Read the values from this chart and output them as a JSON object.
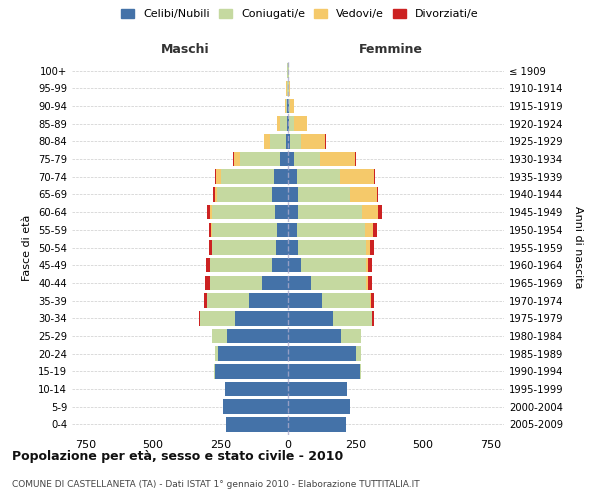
{
  "age_groups": [
    "0-4",
    "5-9",
    "10-14",
    "15-19",
    "20-24",
    "25-29",
    "30-34",
    "35-39",
    "40-44",
    "45-49",
    "50-54",
    "55-59",
    "60-64",
    "65-69",
    "70-74",
    "75-79",
    "80-84",
    "85-89",
    "90-94",
    "95-99",
    "100+"
  ],
  "birth_years": [
    "2005-2009",
    "2000-2004",
    "1995-1999",
    "1990-1994",
    "1985-1989",
    "1980-1984",
    "1975-1979",
    "1970-1974",
    "1965-1969",
    "1960-1964",
    "1955-1959",
    "1950-1954",
    "1945-1949",
    "1940-1944",
    "1935-1939",
    "1930-1934",
    "1925-1929",
    "1920-1924",
    "1915-1919",
    "1910-1914",
    "≤ 1909"
  ],
  "males": {
    "celibi": [
      230,
      240,
      235,
      270,
      260,
      225,
      195,
      145,
      95,
      58,
      46,
      42,
      48,
      58,
      52,
      28,
      8,
      5,
      2,
      1,
      0
    ],
    "coniugati": [
      0,
      0,
      0,
      5,
      10,
      55,
      130,
      155,
      195,
      230,
      235,
      240,
      235,
      205,
      195,
      150,
      58,
      24,
      5,
      3,
      2
    ],
    "vedovi": [
      0,
      0,
      0,
      0,
      0,
      0,
      0,
      0,
      0,
      2,
      2,
      2,
      5,
      8,
      18,
      22,
      22,
      12,
      4,
      2,
      0
    ],
    "divorziati": [
      0,
      0,
      0,
      0,
      0,
      0,
      5,
      10,
      18,
      12,
      10,
      10,
      12,
      5,
      5,
      2,
      2,
      0,
      0,
      0,
      0
    ]
  },
  "females": {
    "nubili": [
      215,
      230,
      220,
      265,
      250,
      195,
      165,
      125,
      85,
      48,
      38,
      33,
      36,
      38,
      33,
      22,
      7,
      4,
      2,
      1,
      0
    ],
    "coniugate": [
      0,
      0,
      0,
      5,
      20,
      75,
      145,
      178,
      205,
      240,
      252,
      252,
      238,
      192,
      158,
      98,
      42,
      18,
      7,
      3,
      2
    ],
    "vedove": [
      0,
      0,
      0,
      0,
      0,
      0,
      2,
      4,
      5,
      10,
      15,
      28,
      58,
      98,
      128,
      128,
      88,
      48,
      14,
      5,
      2
    ],
    "divorziate": [
      0,
      0,
      0,
      0,
      0,
      0,
      5,
      12,
      15,
      12,
      15,
      15,
      15,
      5,
      5,
      2,
      2,
      0,
      0,
      0,
      0
    ]
  },
  "colors": {
    "celibi": "#4472a8",
    "coniugati": "#c5d9a0",
    "vedovi": "#f5c96a",
    "divorziati": "#cc2222"
  },
  "legend_labels": [
    "Celibi/Nubili",
    "Coniugati/e",
    "Vedovi/e",
    "Divorziati/e"
  ],
  "title": "Popolazione per età, sesso e stato civile - 2010",
  "subtitle": "COMUNE DI CASTELLANETA (TA) - Dati ISTAT 1° gennaio 2010 - Elaborazione TUTTITALIA.IT",
  "xlabel_left": "Maschi",
  "xlabel_right": "Femmine",
  "ylabel_left": "Fasce di età",
  "ylabel_right": "Anni di nascita",
  "xlim": 800
}
